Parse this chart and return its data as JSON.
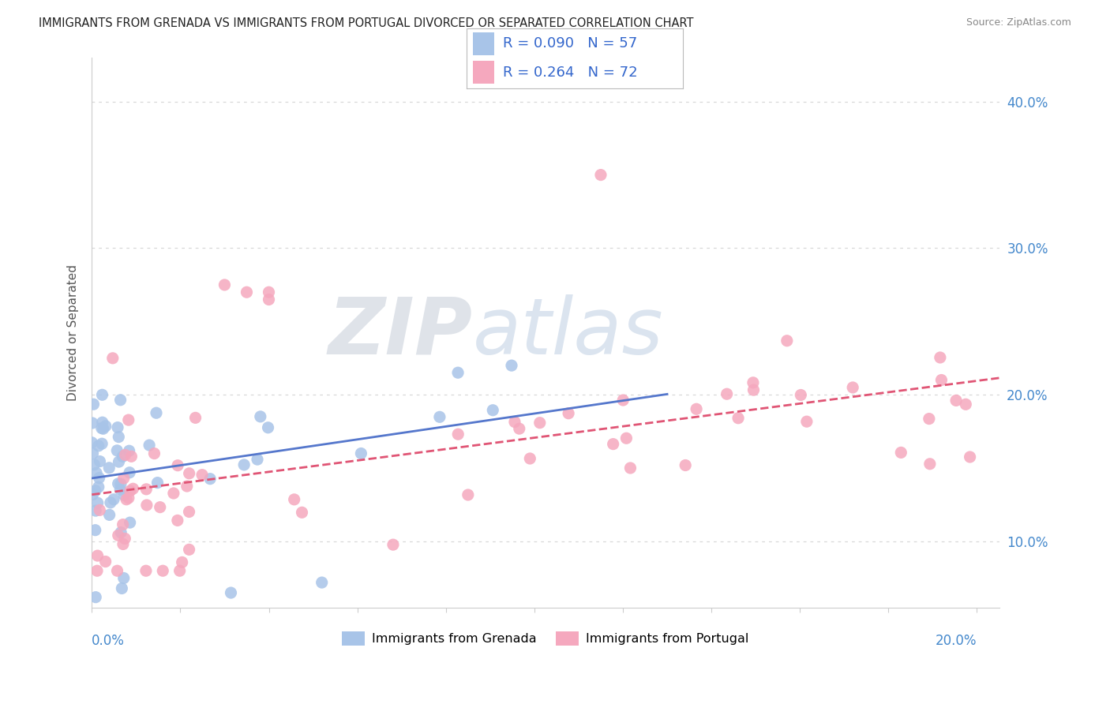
{
  "title": "IMMIGRANTS FROM GRENADA VS IMMIGRANTS FROM PORTUGAL DIVORCED OR SEPARATED CORRELATION CHART",
  "source": "Source: ZipAtlas.com",
  "ylabel": "Divorced or Separated",
  "yticks_labels": [
    "10.0%",
    "20.0%",
    "30.0%",
    "40.0%"
  ],
  "ytick_vals": [
    0.1,
    0.2,
    0.3,
    0.4
  ],
  "xlim": [
    0.0,
    0.205
  ],
  "ylim": [
    0.055,
    0.43
  ],
  "grenada_color": "#a8c4e8",
  "portugal_color": "#f5a8be",
  "grenada_R": "0.090",
  "grenada_N": "57",
  "portugal_R": "0.264",
  "portugal_N": "72",
  "grenada_line_color": "#5577cc",
  "portugal_line_color": "#e05575",
  "watermark_zip": "ZIP",
  "watermark_atlas": "atlas",
  "watermark_zip_color": "#c8cfe0",
  "watermark_atlas_color": "#b8cce4",
  "background_color": "#ffffff",
  "legend_R_color": "#3366cc",
  "legend_N_color": "#3366cc",
  "tick_label_color": "#4488cc",
  "ylabel_color": "#555555",
  "title_color": "#222222",
  "source_color": "#888888",
  "grid_color": "#d8d8d8",
  "spine_color": "#cccccc"
}
